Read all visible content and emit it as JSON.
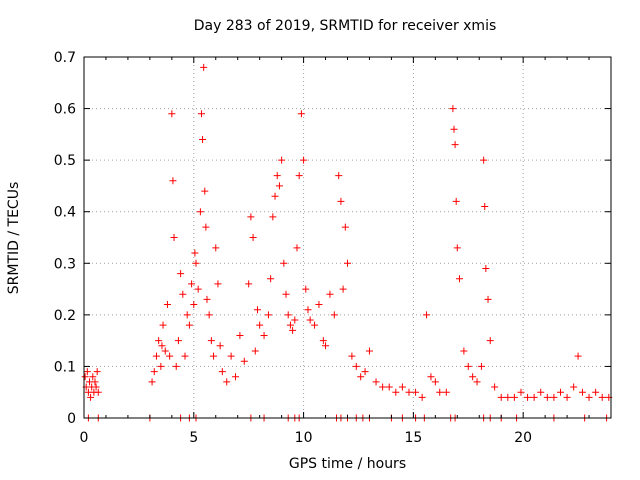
{
  "chart_data": {
    "type": "scatter",
    "title": "Day 283 of 2019, SRMTID for receiver xmis",
    "xlabel": "GPS time / hours",
    "ylabel": "SRMTID / TECUs",
    "xlim": [
      0,
      24
    ],
    "ylim": [
      0,
      0.7
    ],
    "xticks": [
      "0",
      "5",
      "10",
      "15",
      "20"
    ],
    "yticks": [
      "0",
      "0.1",
      "0.2",
      "0.3",
      "0.4",
      "0.5",
      "0.6",
      "0.7"
    ],
    "grid": true,
    "marker": "+",
    "color": "#ff0000",
    "series": [
      {
        "name": "SRMTID",
        "points": [
          [
            0.05,
            0.08
          ],
          [
            0.1,
            0.06
          ],
          [
            0.15,
            0.09
          ],
          [
            0.2,
            0.05
          ],
          [
            0.25,
            0.07
          ],
          [
            0.3,
            0.04
          ],
          [
            0.35,
            0.06
          ],
          [
            0.4,
            0.08
          ],
          [
            0.45,
            0.05
          ],
          [
            0.5,
            0.07
          ],
          [
            0.55,
            0.06
          ],
          [
            0.6,
            0.09
          ],
          [
            0.65,
            0.05
          ],
          [
            0.2,
            0.0
          ],
          [
            0.65,
            0.0
          ],
          [
            3.0,
            0.0
          ],
          [
            3.1,
            0.07
          ],
          [
            3.2,
            0.09
          ],
          [
            3.3,
            0.12
          ],
          [
            3.4,
            0.15
          ],
          [
            3.5,
            0.1
          ],
          [
            3.55,
            0.14
          ],
          [
            3.6,
            0.18
          ],
          [
            3.7,
            0.13
          ],
          [
            3.8,
            0.22
          ],
          [
            3.9,
            0.12
          ],
          [
            4.0,
            0.59
          ],
          [
            4.05,
            0.46
          ],
          [
            4.1,
            0.35
          ],
          [
            4.2,
            0.1
          ],
          [
            4.3,
            0.15
          ],
          [
            4.4,
            0.28
          ],
          [
            4.5,
            0.24
          ],
          [
            4.6,
            0.12
          ],
          [
            4.7,
            0.2
          ],
          [
            4.8,
            0.18
          ],
          [
            4.9,
            0.26
          ],
          [
            5.0,
            0.22
          ],
          [
            5.05,
            0.32
          ],
          [
            5.1,
            0.3
          ],
          [
            5.2,
            0.25
          ],
          [
            5.3,
            0.4
          ],
          [
            5.35,
            0.59
          ],
          [
            5.4,
            0.54
          ],
          [
            5.45,
            0.68
          ],
          [
            5.5,
            0.44
          ],
          [
            5.55,
            0.37
          ],
          [
            5.6,
            0.23
          ],
          [
            5.7,
            0.2
          ],
          [
            5.8,
            0.15
          ],
          [
            5.9,
            0.12
          ],
          [
            6.0,
            0.33
          ],
          [
            6.1,
            0.26
          ],
          [
            6.2,
            0.14
          ],
          [
            6.3,
            0.09
          ],
          [
            6.5,
            0.07
          ],
          [
            6.7,
            0.12
          ],
          [
            6.9,
            0.08
          ],
          [
            7.1,
            0.16
          ],
          [
            7.3,
            0.11
          ],
          [
            7.5,
            0.26
          ],
          [
            7.6,
            0.39
          ],
          [
            7.7,
            0.35
          ],
          [
            7.8,
            0.13
          ],
          [
            7.9,
            0.21
          ],
          [
            8.0,
            0.18
          ],
          [
            8.2,
            0.16
          ],
          [
            8.4,
            0.2
          ],
          [
            8.5,
            0.27
          ],
          [
            8.6,
            0.39
          ],
          [
            8.7,
            0.43
          ],
          [
            8.8,
            0.47
          ],
          [
            8.9,
            0.45
          ],
          [
            9.0,
            0.5
          ],
          [
            9.1,
            0.3
          ],
          [
            9.2,
            0.24
          ],
          [
            9.3,
            0.2
          ],
          [
            9.4,
            0.18
          ],
          [
            9.5,
            0.17
          ],
          [
            9.6,
            0.19
          ],
          [
            9.7,
            0.33
          ],
          [
            9.8,
            0.47
          ],
          [
            9.9,
            0.59
          ],
          [
            10.0,
            0.5
          ],
          [
            10.1,
            0.25
          ],
          [
            10.2,
            0.21
          ],
          [
            10.3,
            0.19
          ],
          [
            10.5,
            0.18
          ],
          [
            10.7,
            0.22
          ],
          [
            10.9,
            0.15
          ],
          [
            11.0,
            0.14
          ],
          [
            11.2,
            0.24
          ],
          [
            11.4,
            0.2
          ],
          [
            11.6,
            0.47
          ],
          [
            11.7,
            0.42
          ],
          [
            11.8,
            0.25
          ],
          [
            11.9,
            0.37
          ],
          [
            12.0,
            0.3
          ],
          [
            12.2,
            0.12
          ],
          [
            12.4,
            0.1
          ],
          [
            12.6,
            0.08
          ],
          [
            12.8,
            0.09
          ],
          [
            13.0,
            0.13
          ],
          [
            13.3,
            0.07
          ],
          [
            13.6,
            0.06
          ],
          [
            13.9,
            0.06
          ],
          [
            14.2,
            0.05
          ],
          [
            14.5,
            0.06
          ],
          [
            14.8,
            0.05
          ],
          [
            15.1,
            0.05
          ],
          [
            15.4,
            0.04
          ],
          [
            15.6,
            0.2
          ],
          [
            15.8,
            0.08
          ],
          [
            16.0,
            0.07
          ],
          [
            16.2,
            0.05
          ],
          [
            16.5,
            0.05
          ],
          [
            16.8,
            0.6
          ],
          [
            16.85,
            0.56
          ],
          [
            16.9,
            0.53
          ],
          [
            16.95,
            0.42
          ],
          [
            17.0,
            0.33
          ],
          [
            17.1,
            0.27
          ],
          [
            17.3,
            0.13
          ],
          [
            17.5,
            0.1
          ],
          [
            17.7,
            0.08
          ],
          [
            17.9,
            0.07
          ],
          [
            18.1,
            0.1
          ],
          [
            18.2,
            0.5
          ],
          [
            18.25,
            0.41
          ],
          [
            18.3,
            0.29
          ],
          [
            18.4,
            0.23
          ],
          [
            18.5,
            0.15
          ],
          [
            18.7,
            0.06
          ],
          [
            19.0,
            0.04
          ],
          [
            19.3,
            0.04
          ],
          [
            19.6,
            0.04
          ],
          [
            19.9,
            0.05
          ],
          [
            20.2,
            0.04
          ],
          [
            20.5,
            0.04
          ],
          [
            20.8,
            0.05
          ],
          [
            21.1,
            0.04
          ],
          [
            21.4,
            0.04
          ],
          [
            21.7,
            0.05
          ],
          [
            22.0,
            0.04
          ],
          [
            22.3,
            0.06
          ],
          [
            22.5,
            0.12
          ],
          [
            22.7,
            0.05
          ],
          [
            23.0,
            0.04
          ],
          [
            23.3,
            0.05
          ],
          [
            23.6,
            0.04
          ],
          [
            23.9,
            0.04
          ],
          [
            4.4,
            0.0
          ],
          [
            4.8,
            0.0
          ],
          [
            5.1,
            0.0
          ],
          [
            7.6,
            0.0
          ],
          [
            8.2,
            0.0
          ],
          [
            9.3,
            0.0
          ],
          [
            9.6,
            0.0
          ],
          [
            9.8,
            0.0
          ],
          [
            11.5,
            0.0
          ],
          [
            11.7,
            0.0
          ],
          [
            12.0,
            0.0
          ],
          [
            12.4,
            0.0
          ],
          [
            12.7,
            0.0
          ],
          [
            13.0,
            0.0
          ],
          [
            14.0,
            0.0
          ],
          [
            14.5,
            0.0
          ],
          [
            15.1,
            0.0
          ],
          [
            15.5,
            0.0
          ],
          [
            16.7,
            0.0
          ],
          [
            16.9,
            0.0
          ],
          [
            18.2,
            0.0
          ],
          [
            18.5,
            0.0
          ],
          [
            19.0,
            0.0
          ],
          [
            19.7,
            0.0
          ],
          [
            21.4,
            0.0
          ],
          [
            22.8,
            0.0
          ],
          [
            23.8,
            0.0
          ]
        ]
      }
    ]
  }
}
